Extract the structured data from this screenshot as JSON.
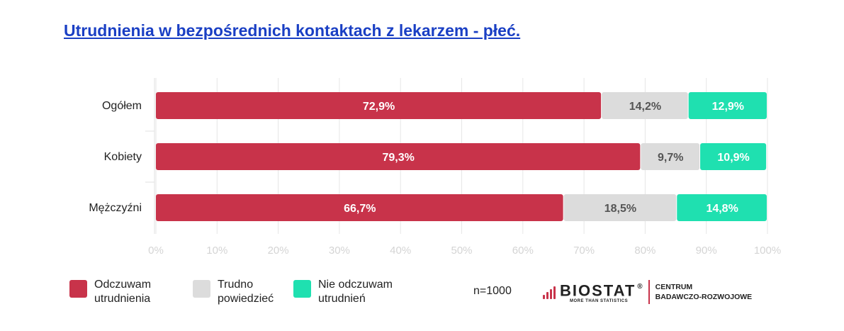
{
  "title": "Utrudnienia w bezpośrednich kontaktach z lekarzem - płeć.",
  "chart_data": {
    "type": "bar",
    "orientation": "horizontal",
    "stacked": true,
    "categories": [
      "Ogółem",
      "Kobiety",
      "Mężczyźni"
    ],
    "series": [
      {
        "name": "Odczuwam\nutrudnienia",
        "values": [
          72.9,
          79.3,
          66.7
        ],
        "labels": [
          "72,9%",
          "79,3%",
          "66,7%"
        ],
        "color": "#c8334a",
        "label_color": "#ffffff"
      },
      {
        "name": "Trudno\npowiedzieć",
        "values": [
          14.2,
          9.7,
          18.5
        ],
        "labels": [
          "14,2%",
          "9,7%",
          "18,5%"
        ],
        "color": "#dcdcdc",
        "label_color": "#555555"
      },
      {
        "name": "Nie odczuwam\nutrudnień",
        "values": [
          12.9,
          10.9,
          14.8
        ],
        "labels": [
          "12,9%",
          "10,9%",
          "14,8%"
        ],
        "color": "#1fe0b0",
        "label_color": "#ffffff"
      }
    ],
    "xlim": [
      0,
      100
    ],
    "xticks": [
      "0%",
      "10%",
      "20%",
      "30%",
      "40%",
      "50%",
      "60%",
      "70%",
      "80%",
      "90%",
      "100%"
    ],
    "grid": true,
    "legend_position": "bottom-left"
  },
  "sample_size": "n=1000",
  "logo": {
    "name": "BIOSTAT",
    "registered": "®",
    "tagline": "MORE THAN STATISTICS",
    "unit": "CENTRUM\nBADAWCZO-ROZWOJOWE"
  }
}
